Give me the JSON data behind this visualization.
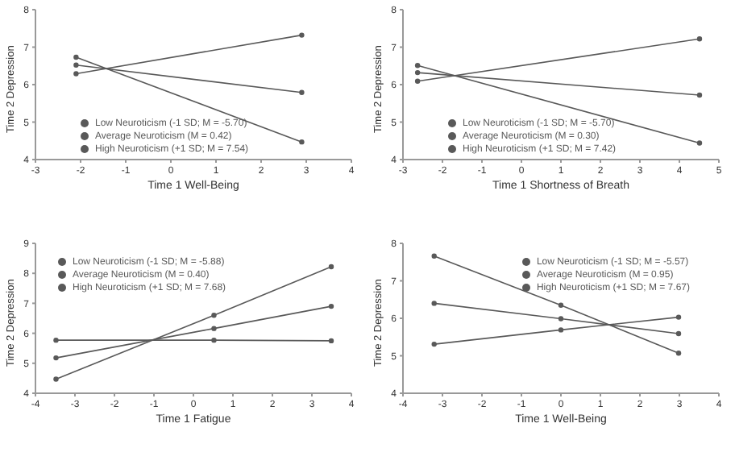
{
  "chart_data": [
    {
      "type": "line",
      "xlabel": "Time 1 Well-Being",
      "ylabel": "Time 2 Depression",
      "xlim": [
        -3,
        4
      ],
      "xticks": [
        -3,
        -2,
        -1,
        0,
        1,
        2,
        3,
        4
      ],
      "ylim": [
        4,
        8
      ],
      "yticks": [
        4,
        5,
        6,
        7,
        8
      ],
      "grid": false,
      "legend": "bottom left",
      "marker": "circle",
      "line_style": "solid",
      "series": [
        {
          "name": "Low Neuroticism (-1 SD; M = -5.70)",
          "color": "#595959",
          "x": [
            -2.1,
            2.9
          ],
          "values": [
            6.29,
            7.32
          ]
        },
        {
          "name": "Average Neuroticism (M = 0.42)",
          "color": "#595959",
          "x": [
            -2.1,
            2.9
          ],
          "values": [
            6.52,
            5.79
          ]
        },
        {
          "name": "High Neuroticism (+1 SD; M = 7.54)",
          "color": "#595959",
          "x": [
            -2.1,
            2.9
          ],
          "values": [
            6.73,
            4.47
          ]
        }
      ]
    },
    {
      "type": "line",
      "xlabel": "Time 1 Shortness of Breath",
      "ylabel": "Time 2 Depression",
      "xlim": [
        -3,
        5
      ],
      "xticks": [
        -3,
        -2,
        -1,
        0,
        1,
        2,
        3,
        4,
        5
      ],
      "ylim": [
        4,
        8
      ],
      "yticks": [
        4,
        5,
        6,
        7,
        8
      ],
      "grid": false,
      "legend": "bottom left",
      "marker": "circle",
      "line_style": "solid",
      "series": [
        {
          "name": "Low Neuroticism (-1 SD; M = -5.70)",
          "color": "#595959",
          "x": [
            -2.63,
            4.51
          ],
          "values": [
            6.09,
            7.22
          ]
        },
        {
          "name": "Average Neuroticism (M = 0.30)",
          "color": "#595959",
          "x": [
            -2.63,
            4.51
          ],
          "values": [
            6.32,
            5.72
          ]
        },
        {
          "name": "High Neuroticism (+1 SD; M = 7.42)",
          "color": "#595959",
          "x": [
            -2.63,
            4.51
          ],
          "values": [
            6.51,
            4.44
          ]
        }
      ]
    },
    {
      "type": "line",
      "xlabel": "Time 1 Fatigue",
      "ylabel": "Time 2 Depression",
      "xlim": [
        -4,
        4
      ],
      "xticks": [
        -4,
        -3,
        -2,
        -1,
        0,
        1,
        2,
        3,
        4
      ],
      "ylim": [
        4,
        9
      ],
      "yticks": [
        4,
        5,
        6,
        7,
        8,
        9
      ],
      "grid": false,
      "legend": "top left",
      "marker": "circle",
      "line_style": "solid",
      "series": [
        {
          "name": "Low Neuroticism (-1 SD; M = -5.88)",
          "color": "#595959",
          "x": [
            -3.48,
            0.52,
            3.49
          ],
          "values": [
            5.77,
            5.77,
            5.75
          ]
        },
        {
          "name": "Average Neuroticism (M = 0.40)",
          "color": "#595959",
          "x": [
            -3.48,
            0.52,
            3.49
          ],
          "values": [
            5.18,
            6.16,
            6.9
          ]
        },
        {
          "name": "High Neuroticism (+1 SD; M = 7.68)",
          "color": "#595959",
          "x": [
            -3.48,
            0.52,
            3.49
          ],
          "values": [
            4.47,
            6.6,
            8.22
          ]
        }
      ]
    },
    {
      "type": "line",
      "xlabel": "Time 1 Well-Being",
      "ylabel": "Time 2 Depression",
      "xlim": [
        -4,
        4
      ],
      "xticks": [
        -4,
        -3,
        -2,
        -1,
        0,
        1,
        2,
        3,
        4
      ],
      "ylim": [
        4,
        8
      ],
      "yticks": [
        4,
        5,
        6,
        7,
        8
      ],
      "grid": false,
      "legend": "top right",
      "marker": "circle",
      "line_style": "solid",
      "series": [
        {
          "name": "Low Neuroticism (-1 SD; M = -5.57)",
          "color": "#595959",
          "x": [
            -3.21,
            0,
            2.98
          ],
          "values": [
            5.31,
            5.69,
            6.03
          ]
        },
        {
          "name": "Average Neuroticism (M = 0.95)",
          "color": "#595959",
          "x": [
            -3.21,
            0,
            2.98
          ],
          "values": [
            6.4,
            5.99,
            5.59
          ]
        },
        {
          "name": "High Neuroticism (+1 SD; M = 7.67)",
          "color": "#595959",
          "x": [
            -3.21,
            0,
            2.98
          ],
          "values": [
            7.66,
            6.35,
            5.07
          ]
        }
      ]
    }
  ]
}
